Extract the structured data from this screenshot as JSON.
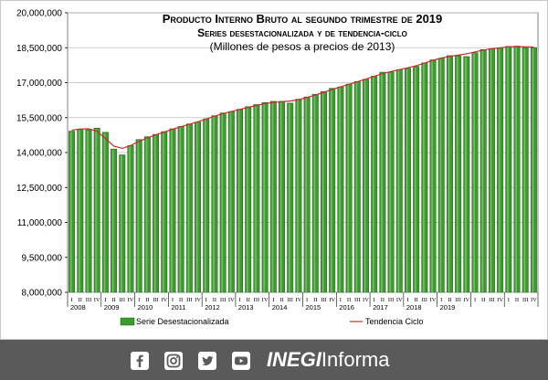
{
  "chart_data": {
    "type": "bar",
    "title": "Producto Interno Bruto al segundo trimestre de 2019",
    "subtitle": "Series desestacionalizada y de tendencia-ciclo",
    "units_note": "(Millones de pesos a precios de 2013)",
    "ylim": [
      8000000,
      20000000
    ],
    "yticks": [
      "8,000,000",
      "9,500,000",
      "11,000,000",
      "12,500,000",
      "14,000,000",
      "15,500,000",
      "17,000,000",
      "18,500,000",
      "20,000,000"
    ],
    "ytick_values": [
      8000000,
      9500000,
      11000000,
      12500000,
      14000000,
      15500000,
      17000000,
      18500000,
      20000000
    ],
    "quarter_labels": [
      "I",
      "II",
      "III",
      "IV"
    ],
    "years": [
      "2008",
      "2009",
      "2010",
      "2011",
      "2012",
      "2013",
      "2014",
      "2015",
      "2016",
      "2017",
      "2018",
      "2019"
    ],
    "grid": true,
    "legend_position": "bottom",
    "series": [
      {
        "name": "Serie Desestacionalizada",
        "type": "bar",
        "color": "#3d9a2f",
        "values": [
          14920000,
          15000000,
          14980000,
          15050000,
          14870000,
          14150000,
          13900000,
          14300000,
          14560000,
          14680000,
          14780000,
          14900000,
          15020000,
          15120000,
          15230000,
          15310000,
          15450000,
          15580000,
          15700000,
          15760000,
          15860000,
          15970000,
          16060000,
          16150000,
          16200000,
          16200000,
          16120000,
          16290000,
          16390000,
          16500000,
          16620000,
          16760000,
          16820000,
          16940000,
          17050000,
          17150000,
          17280000,
          17450000,
          17460000,
          17560000,
          17620000,
          17700000,
          17850000,
          17980000,
          18050000,
          18160000,
          18160000,
          18120000,
          18290000,
          18420000,
          18460000,
          18490000,
          18560000,
          18570000,
          18510000,
          18510000
        ]
      },
      {
        "name": "Tendencia Ciclo",
        "type": "line",
        "color": "#cc2b2b",
        "values": [
          14960000,
          15010000,
          15020000,
          14920000,
          14600000,
          14280000,
          14180000,
          14300000,
          14480000,
          14630000,
          14760000,
          14880000,
          15000000,
          15110000,
          15210000,
          15320000,
          15440000,
          15560000,
          15670000,
          15760000,
          15850000,
          15940000,
          16020000,
          16100000,
          16150000,
          16180000,
          16210000,
          16270000,
          16360000,
          16470000,
          16590000,
          16710000,
          16820000,
          16930000,
          17040000,
          17150000,
          17270000,
          17390000,
          17480000,
          17560000,
          17640000,
          17730000,
          17840000,
          17960000,
          18060000,
          18130000,
          18180000,
          18240000,
          18320000,
          18400000,
          18460000,
          18500000,
          18540000,
          18550000,
          18540000,
          18530000
        ]
      }
    ]
  },
  "footer": {
    "brand_bold": "INEGI",
    "brand_light": "Informa",
    "social_icons": [
      "facebook-icon",
      "instagram-icon",
      "twitter-icon",
      "youtube-icon"
    ],
    "background_color": "#5a5a5a"
  }
}
